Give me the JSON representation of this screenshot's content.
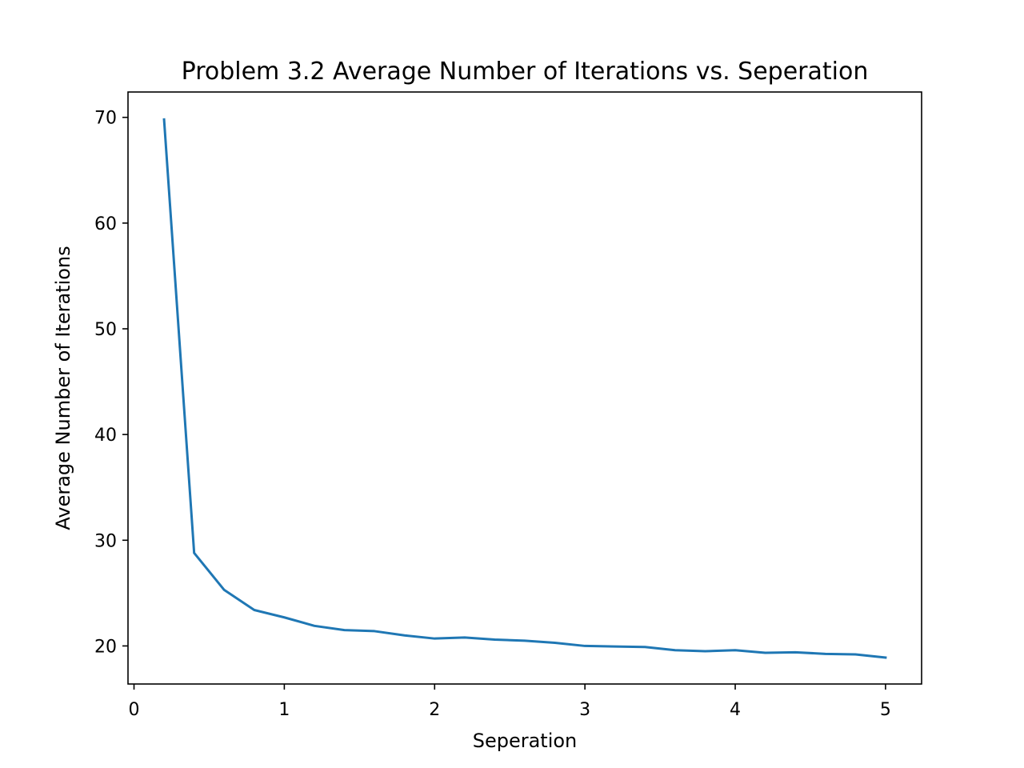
{
  "chart_data": {
    "type": "line",
    "title": "Problem 3.2 Average Number of Iterations vs. Seperation",
    "xlabel": "Seperation",
    "ylabel": "Average Number of Iterations",
    "xlim": [
      -0.04,
      5.24
    ],
    "ylim": [
      16.4,
      72.4
    ],
    "xticks": [
      0,
      1,
      2,
      3,
      4,
      5
    ],
    "yticks": [
      20,
      30,
      40,
      50,
      60,
      70
    ],
    "grid": false,
    "legend": "none",
    "series": [
      {
        "color": "#1f77b4",
        "x": [
          0.2,
          0.4,
          0.6,
          0.8,
          1.0,
          1.2,
          1.4,
          1.6,
          1.8,
          2.0,
          2.2,
          2.4,
          2.6,
          2.8,
          3.0,
          3.2,
          3.4,
          3.6,
          3.8,
          4.0,
          4.2,
          4.4,
          4.6,
          4.8,
          5.0
        ],
        "y": [
          69.8,
          28.8,
          25.3,
          23.4,
          22.7,
          21.9,
          21.5,
          21.4,
          21.0,
          20.7,
          20.8,
          20.6,
          20.5,
          20.3,
          20.0,
          19.95,
          19.9,
          19.6,
          19.5,
          19.6,
          19.35,
          19.4,
          19.25,
          19.2,
          18.9
        ]
      }
    ]
  }
}
